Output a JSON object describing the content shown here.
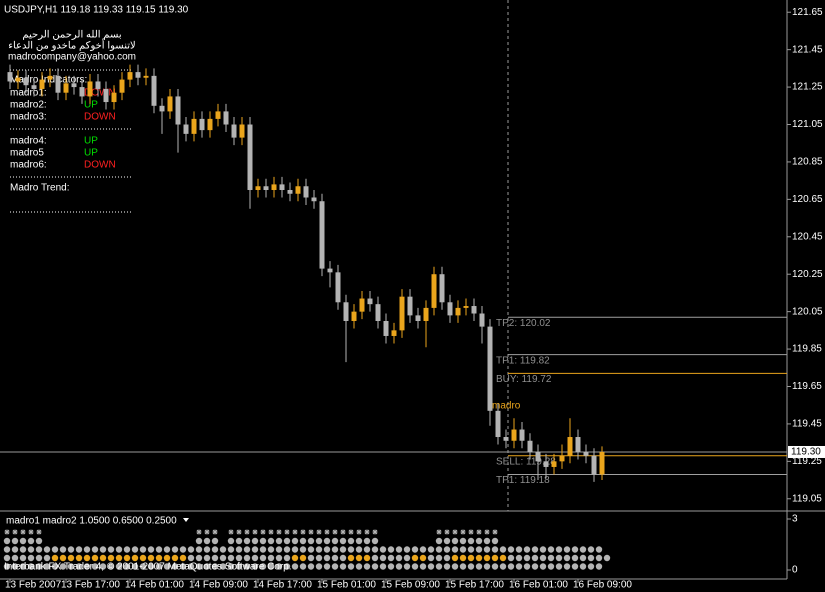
{
  "header": "USDJPY,H1 119.18 119.33 119.15 119.30",
  "overlay": {
    "greeting": "بسم الله الرحمن الرحيم",
    "prayer": "لاتنسوا أخوكم ماخدو من الدعاء",
    "email": "madrocompany@yahoo.com",
    "indicators_title": "Madro Indicators:",
    "indicators": [
      {
        "name": "madro1:",
        "signal": "DOWN"
      },
      {
        "name": "madro2:",
        "signal": "UP"
      },
      {
        "name": "madro3:",
        "signal": "DOWN"
      },
      {
        "name": "madro4:",
        "signal": "UP"
      },
      {
        "name": "madro5",
        "signal": "UP"
      },
      {
        "name": "madro6:",
        "signal": "DOWN"
      }
    ],
    "signal_colors": {
      "UP": "#00e000",
      "DOWN": "#ff2020"
    },
    "trend_title": "Madro Trend:"
  },
  "watermark": "Interbank FX Trader 4, © 2001-2007 MetaQuotes Software Corp.",
  "chart_data": {
    "type": "candlestick",
    "categories": [
      "13 Feb 2007",
      null,
      null,
      null,
      null,
      null,
      null,
      "13 Feb 17:00",
      null,
      null,
      null,
      null,
      null,
      null,
      null,
      "14 Feb 01:00",
      null,
      null,
      null,
      null,
      null,
      null,
      null,
      "14 Feb 09:00",
      null,
      null,
      null,
      null,
      null,
      null,
      null,
      "14 Feb 17:00",
      null,
      null,
      null,
      null,
      null,
      null,
      null,
      "15 Feb 01:00",
      null,
      null,
      null,
      null,
      null,
      null,
      null,
      "15 Feb 09:00",
      null,
      null,
      null,
      null,
      null,
      null,
      null,
      "15 Feb 17:00",
      null,
      null,
      null,
      null,
      null,
      null,
      null,
      "16 Feb 01:00",
      null,
      null,
      null,
      null,
      null,
      null,
      null,
      "16 Feb 09:00",
      null,
      null,
      null
    ],
    "open": [
      121.33,
      121.28,
      121.3,
      121.26,
      121.24,
      121.29,
      121.31,
      121.22,
      121.27,
      121.25,
      121.2,
      121.28,
      121.24,
      121.17,
      121.22,
      121.29,
      121.33,
      121.3,
      121.31,
      121.15,
      121.12,
      121.2,
      121.05,
      121.0,
      121.08,
      121.02,
      121.08,
      121.12,
      121.05,
      120.98,
      121.05,
      120.7,
      120.72,
      120.7,
      120.73,
      120.7,
      120.68,
      120.72,
      120.66,
      120.64,
      120.28,
      120.26,
      120.1,
      120.0,
      120.05,
      120.12,
      120.09,
      120.0,
      119.92,
      119.95,
      120.13,
      120.03,
      120.0,
      120.07,
      120.25,
      120.1,
      120.03,
      120.07,
      120.08,
      120.04,
      119.97,
      119.52,
      119.38,
      119.36,
      119.42,
      119.36,
      119.3,
      119.25,
      119.22,
      119.25,
      119.28,
      119.38,
      119.3,
      119.28,
      119.18
    ],
    "high": [
      121.37,
      121.34,
      121.34,
      121.3,
      121.33,
      121.35,
      121.35,
      121.31,
      121.31,
      121.29,
      121.32,
      121.32,
      121.28,
      121.26,
      121.33,
      121.37,
      121.37,
      121.35,
      121.35,
      121.19,
      121.24,
      121.24,
      121.09,
      121.12,
      121.12,
      121.12,
      121.16,
      121.16,
      121.09,
      121.09,
      121.09,
      120.76,
      120.76,
      120.77,
      120.77,
      120.74,
      120.76,
      120.76,
      120.7,
      120.68,
      120.32,
      120.3,
      120.14,
      120.09,
      120.16,
      120.16,
      120.13,
      120.04,
      119.99,
      120.17,
      120.17,
      120.07,
      120.11,
      120.29,
      120.29,
      120.14,
      120.11,
      120.12,
      120.12,
      120.08,
      120.01,
      119.56,
      119.42,
      119.48,
      119.46,
      119.4,
      119.34,
      119.29,
      119.29,
      119.34,
      119.48,
      119.42,
      119.34,
      119.32,
      119.33
    ],
    "low": [
      121.24,
      121.24,
      121.22,
      121.2,
      121.2,
      121.25,
      121.18,
      121.18,
      121.21,
      121.16,
      121.16,
      121.2,
      121.13,
      121.13,
      121.18,
      121.25,
      121.26,
      121.26,
      121.11,
      121.0,
      121.08,
      120.9,
      120.96,
      120.96,
      120.98,
      120.98,
      121.04,
      121.01,
      120.94,
      120.94,
      120.6,
      120.66,
      120.66,
      120.66,
      120.66,
      120.64,
      120.64,
      120.62,
      120.6,
      120.24,
      120.18,
      120.06,
      119.78,
      119.96,
      120.01,
      120.05,
      119.96,
      119.88,
      119.88,
      119.91,
      119.99,
      119.96,
      119.86,
      120.03,
      120.06,
      119.99,
      119.99,
      120.03,
      120.0,
      119.88,
      119.44,
      119.34,
      119.32,
      119.32,
      119.32,
      119.26,
      119.15,
      119.16,
      119.18,
      119.21,
      119.24,
      119.26,
      119.24,
      119.14,
      119.15
    ],
    "close": [
      121.28,
      121.3,
      121.26,
      121.24,
      121.29,
      121.31,
      121.22,
      121.27,
      121.25,
      121.2,
      121.28,
      121.24,
      121.17,
      121.22,
      121.29,
      121.33,
      121.3,
      121.31,
      121.15,
      121.12,
      121.2,
      121.05,
      121.0,
      121.08,
      121.02,
      121.08,
      121.12,
      121.05,
      120.98,
      121.05,
      120.7,
      120.72,
      120.7,
      120.73,
      120.7,
      120.68,
      120.72,
      120.66,
      120.64,
      120.28,
      120.26,
      120.1,
      120.0,
      120.05,
      120.12,
      120.09,
      120.0,
      119.92,
      119.95,
      120.13,
      120.03,
      120.0,
      120.07,
      120.25,
      120.1,
      120.03,
      120.07,
      120.08,
      120.04,
      119.97,
      119.52,
      119.38,
      119.36,
      119.42,
      119.36,
      119.3,
      119.25,
      119.22,
      119.25,
      119.28,
      119.38,
      119.3,
      119.28,
      119.18,
      119.3
    ],
    "up_color": "#eaa51c",
    "down_color": "#b4b4b4",
    "ylim": [
      118.99,
      121.71
    ],
    "yticks": [
      121.65,
      121.45,
      121.25,
      121.05,
      120.85,
      120.65,
      120.45,
      120.25,
      120.05,
      119.85,
      119.65,
      119.45,
      119.25,
      119.05
    ],
    "levels": [
      {
        "label": "TP2: 120.02",
        "value": 120.02,
        "color": "#a0a0a0"
      },
      {
        "label": "TP1: 119.82",
        "value": 119.82,
        "color": "#a0a0a0"
      },
      {
        "label": "BUY: 119.72",
        "value": 119.72,
        "color": "#eaa51c"
      },
      {
        "label": "SELL: 119.28",
        "value": 119.28,
        "color": "#eaa51c"
      },
      {
        "label": "TP1: 119.18",
        "value": 119.18,
        "color": "#a0a0a0"
      }
    ],
    "current_price": {
      "value": 119.3,
      "label": "119.30"
    },
    "annotation": "madro",
    "indicator_panel": {
      "title": "madro1 madro2 1.0500 0.6500 0.2500",
      "ylim": [
        0,
        3
      ],
      "yticks": [
        0,
        3
      ],
      "stars": "*****...................***.*******************.......********.............",
      "rows": [
        "ggggg...................ggg.ggggggggggggggggggg.......gggggggg.............",
        "ggggggggggggggggggggggggggggggggggggggggggggggggggggggggggggggggggggggggggg",
        "ggggggooooooooooooooooogggggggggggggoogggggooogggggoogggoooooooggggggggggggg",
        "ggggggggggggggggggggggggggggggggggggggggggggggggggggggggggggggggggggggggggg"
      ],
      "colors": {
        "g": "#b4b4b4",
        "o": "#eaa51c",
        "*": "#b4b4b4"
      }
    }
  }
}
